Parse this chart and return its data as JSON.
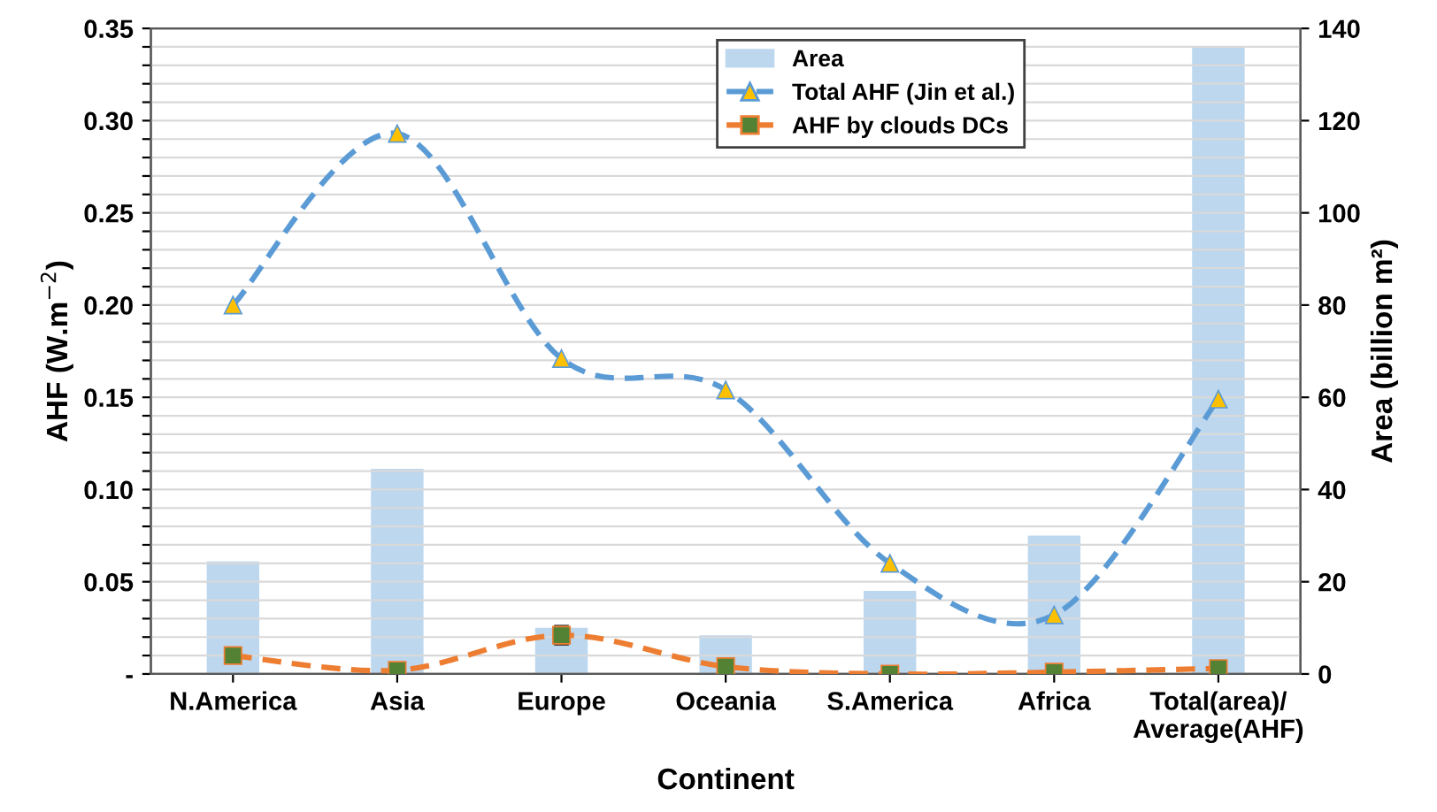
{
  "chart_data": {
    "type": "line",
    "xlabel": "Continent",
    "ylabel": "AHF (W.m$^{−2}$)",
    "y2label": "Area (billion m²)",
    "categories": [
      "N.America",
      "Asia",
      "Europe",
      "Oceania",
      "S.America",
      "Africa",
      "Total(area)/\nAverage(AHF)"
    ],
    "series": [
      {
        "name": "Area",
        "type": "bar",
        "axis": "y2",
        "color": "#bdd7ee",
        "values": [
          24.4,
          44.5,
          10,
          8.4,
          18,
          30,
          136
        ]
      },
      {
        "name": "Total AHF (Jin et al.)",
        "color": "#5b9bd5",
        "marker": "triangle",
        "line_style": "dashed",
        "values": [
          0.2,
          0.293,
          0.171,
          0.154,
          0.06,
          0.032,
          0.149
        ]
      },
      {
        "name": "AHF by clouds DCs",
        "color": "#ed7d31",
        "marker": "square",
        "line_style": "dashed",
        "values": [
          0.01,
          0.002,
          0.021,
          0.004,
          0.0,
          0.001,
          0.003
        ],
        "errors": [
          null,
          null,
          0.005,
          null,
          null,
          null,
          null
        ]
      }
    ],
    "ylim": [
      0,
      0.35
    ],
    "yticks": [
      {
        "value": 0,
        "label": "-"
      },
      {
        "value": 0.01,
        "label": null
      },
      {
        "value": 0.02,
        "label": null
      },
      {
        "value": 0.03,
        "label": null
      },
      {
        "value": 0.04,
        "label": null
      },
      {
        "value": 0.05,
        "label": "0.05"
      },
      {
        "value": 0.06,
        "label": null
      },
      {
        "value": 0.07,
        "label": null
      },
      {
        "value": 0.08,
        "label": null
      },
      {
        "value": 0.09,
        "label": null
      },
      {
        "value": 0.1,
        "label": "0.10"
      },
      {
        "value": 0.11,
        "label": null
      },
      {
        "value": 0.12,
        "label": null
      },
      {
        "value": 0.13,
        "label": null
      },
      {
        "value": 0.14,
        "label": null
      },
      {
        "value": 0.15,
        "label": "0.15"
      },
      {
        "value": 0.16,
        "label": null
      },
      {
        "value": 0.17,
        "label": null
      },
      {
        "value": 0.18,
        "label": null
      },
      {
        "value": 0.19,
        "label": null
      },
      {
        "value": 0.2,
        "label": "0.20"
      },
      {
        "value": 0.21,
        "label": null
      },
      {
        "value": 0.22,
        "label": null
      },
      {
        "value": 0.23,
        "label": null
      },
      {
        "value": 0.24,
        "label": null
      },
      {
        "value": 0.25,
        "label": "0.25"
      },
      {
        "value": 0.26,
        "label": null
      },
      {
        "value": 0.27,
        "label": null
      },
      {
        "value": 0.28,
        "label": null
      },
      {
        "value": 0.29,
        "label": null
      },
      {
        "value": 0.3,
        "label": "0.30"
      },
      {
        "value": 0.31,
        "label": null
      },
      {
        "value": 0.32,
        "label": null
      },
      {
        "value": 0.33,
        "label": null
      },
      {
        "value": 0.34,
        "label": null
      },
      {
        "value": 0.35,
        "label": "0.35"
      }
    ],
    "y2lim": [
      0,
      140
    ],
    "y2ticks": [
      0,
      20,
      40,
      60,
      80,
      100,
      120,
      140
    ],
    "grid": "y",
    "legend": "top right"
  }
}
